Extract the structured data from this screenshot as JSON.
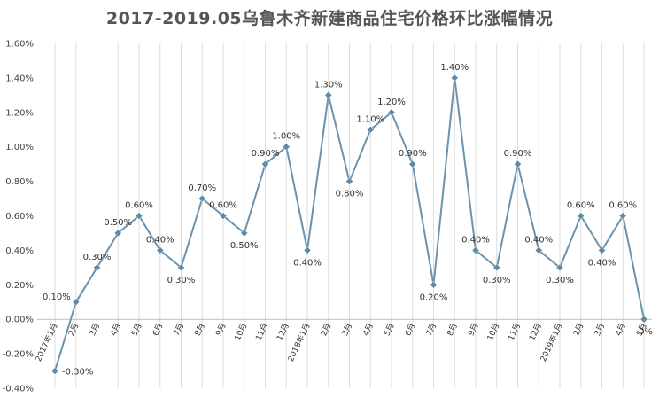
{
  "chart_data": {
    "type": "line",
    "title": "2017-2019.05乌鲁木齐新建商品住宅价格环比涨幅情况",
    "xlabel": "",
    "ylabel": "",
    "ylim": [
      -0.4,
      1.6
    ],
    "y_tick_step": 0.2,
    "y_tick_labels": [
      "-0.40%",
      "-0.20%",
      "0.00%",
      "0.20%",
      "0.40%",
      "0.60%",
      "0.80%",
      "1.00%",
      "1.20%",
      "1.40%",
      "1.60%"
    ],
    "grid": "vertical",
    "legend": "none",
    "line_color": "#6b93ad",
    "marker_color": "#5f8aa6",
    "categories": [
      "2017年1月",
      "2月",
      "3月",
      "4月",
      "5月",
      "6月",
      "7月",
      "8月",
      "9月",
      "10月",
      "11月",
      "12月",
      "2018年1月",
      "2月",
      "3月",
      "4月",
      "5月",
      "6月",
      "7月",
      "8月",
      "9月",
      "10月",
      "11月",
      "12月",
      "2019年1月",
      "2月",
      "3月",
      "4月",
      "5月"
    ],
    "values": [
      -0.3,
      0.1,
      0.3,
      0.5,
      0.6,
      0.4,
      0.3,
      0.7,
      0.6,
      0.5,
      0.9,
      1.0,
      0.4,
      1.3,
      0.8,
      1.1,
      1.2,
      0.9,
      0.2,
      1.4,
      0.4,
      0.3,
      0.9,
      0.4,
      0.3,
      0.6,
      0.4,
      0.6,
      0.0
    ],
    "data_labels": [
      "-0.30%",
      "0.10%",
      "0.30%",
      "0.50%",
      "0.60%",
      "0.40%",
      "0.30%",
      "0.70%",
      "0.60%",
      "0.50%",
      "0.90%",
      "1.00%",
      "0.40%",
      "1.30%",
      "0.80%",
      "1.10%",
      "1.20%",
      "0.90%",
      "0.20%",
      "1.40%",
      "0.40%",
      "0.30%",
      "0.90%",
      "0.40%",
      "0.30%",
      "0.60%",
      "0.40%",
      "0.60%",
      "0%"
    ]
  }
}
